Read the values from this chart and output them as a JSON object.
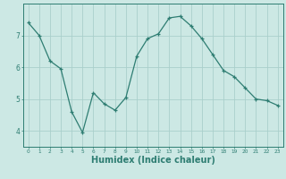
{
  "x": [
    0,
    1,
    2,
    3,
    4,
    5,
    6,
    7,
    8,
    9,
    10,
    11,
    12,
    13,
    14,
    15,
    16,
    17,
    18,
    19,
    20,
    21,
    22,
    23
  ],
  "y": [
    7.4,
    7.0,
    6.2,
    5.95,
    4.6,
    3.95,
    5.2,
    4.85,
    4.65,
    5.05,
    6.35,
    6.9,
    7.05,
    7.55,
    7.6,
    7.3,
    6.9,
    6.4,
    5.9,
    5.7,
    5.35,
    5.0,
    4.95,
    4.8
  ],
  "line_color": "#2e7d72",
  "marker": "+",
  "marker_size": 3.5,
  "bg_color": "#cce8e4",
  "grid_color": "#aacfcb",
  "axis_color": "#2e7d72",
  "tick_color": "#2e7d72",
  "xlabel": "Humidex (Indice chaleur)",
  "xlabel_fontsize": 7,
  "ylabel_ticks": [
    4,
    5,
    6,
    7
  ],
  "xlim": [
    -0.5,
    23.5
  ],
  "ylim": [
    3.5,
    8.0
  ],
  "title": ""
}
